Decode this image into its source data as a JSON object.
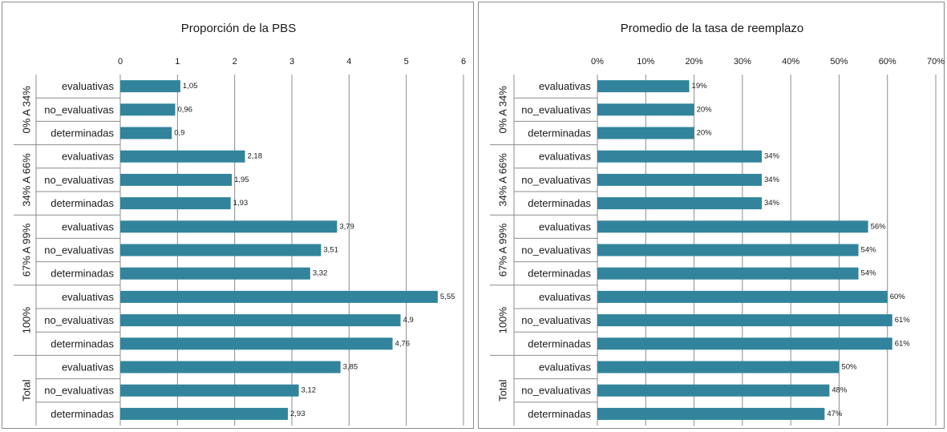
{
  "bar_color": "#31849B",
  "grid_color": "#8c8c8c",
  "chart_data": [
    {
      "type": "bar",
      "orientation": "horizontal",
      "title": "Proporción de la PBS",
      "xlim": [
        0,
        6
      ],
      "x_ticks": [
        0,
        1,
        2,
        3,
        4,
        5,
        6
      ],
      "x_tick_labels": [
        "0",
        "1",
        "2",
        "3",
        "4",
        "5",
        "6"
      ],
      "grid": true,
      "groups": [
        {
          "label": "0% A 34%",
          "categories": [
            "evaluativas",
            "no_evaluativas",
            "determinadas"
          ],
          "values": [
            1.05,
            0.96,
            0.9
          ],
          "labels": [
            "1,05",
            "0,96",
            "0,9"
          ]
        },
        {
          "label": "34% A 66%",
          "categories": [
            "evaluativas",
            "no_evaluativas",
            "determinadas"
          ],
          "values": [
            2.18,
            1.95,
            1.93
          ],
          "labels": [
            "2,18",
            "1,95",
            "1,93"
          ]
        },
        {
          "label": "67% A 99%",
          "categories": [
            "evaluativas",
            "no_evaluativas",
            "determinadas"
          ],
          "values": [
            3.79,
            3.51,
            3.32
          ],
          "labels": [
            "3,79",
            "3,51",
            "3,32"
          ]
        },
        {
          "label": "100%",
          "categories": [
            "evaluativas",
            "no_evaluativas",
            "determinadas"
          ],
          "values": [
            5.55,
            4.9,
            4.76
          ],
          "labels": [
            "5,55",
            "4,9",
            "4,76"
          ]
        },
        {
          "label": "Total",
          "categories": [
            "evaluativas",
            "no_evaluativas",
            "determinadas"
          ],
          "values": [
            3.85,
            3.12,
            2.93
          ],
          "labels": [
            "3,85",
            "3,12",
            "2,93"
          ]
        }
      ]
    },
    {
      "type": "bar",
      "orientation": "horizontal",
      "title": "Promedio de la tasa de reemplazo",
      "xlim": [
        0,
        0.7
      ],
      "x_ticks": [
        0,
        0.1,
        0.2,
        0.3,
        0.4,
        0.5,
        0.6,
        0.7
      ],
      "x_tick_labels": [
        "0%",
        "10%",
        "20%",
        "30%",
        "40%",
        "50%",
        "60%",
        "70%"
      ],
      "grid": true,
      "groups": [
        {
          "label": "0% A 34%",
          "categories": [
            "evaluativas",
            "no_evaluativas",
            "determinadas"
          ],
          "values": [
            0.19,
            0.2,
            0.2
          ],
          "labels": [
            "19%",
            "20%",
            "20%"
          ]
        },
        {
          "label": "34% A 66%",
          "categories": [
            "evaluativas",
            "no_evaluativas",
            "determinadas"
          ],
          "values": [
            0.34,
            0.34,
            0.34
          ],
          "labels": [
            "34%",
            "34%",
            "34%"
          ]
        },
        {
          "label": "67% A 99%",
          "categories": [
            "evaluativas",
            "no_evaluativas",
            "determinadas"
          ],
          "values": [
            0.56,
            0.54,
            0.54
          ],
          "labels": [
            "56%",
            "54%",
            "54%"
          ]
        },
        {
          "label": "100%",
          "categories": [
            "evaluativas",
            "no_evaluativas",
            "determinadas"
          ],
          "values": [
            0.6,
            0.61,
            0.61
          ],
          "labels": [
            "60%",
            "61%",
            "61%"
          ]
        },
        {
          "label": "Total",
          "categories": [
            "evaluativas",
            "no_evaluativas",
            "determinadas"
          ],
          "values": [
            0.5,
            0.48,
            0.47
          ],
          "labels": [
            "50%",
            "48%",
            "47%"
          ]
        }
      ]
    }
  ]
}
